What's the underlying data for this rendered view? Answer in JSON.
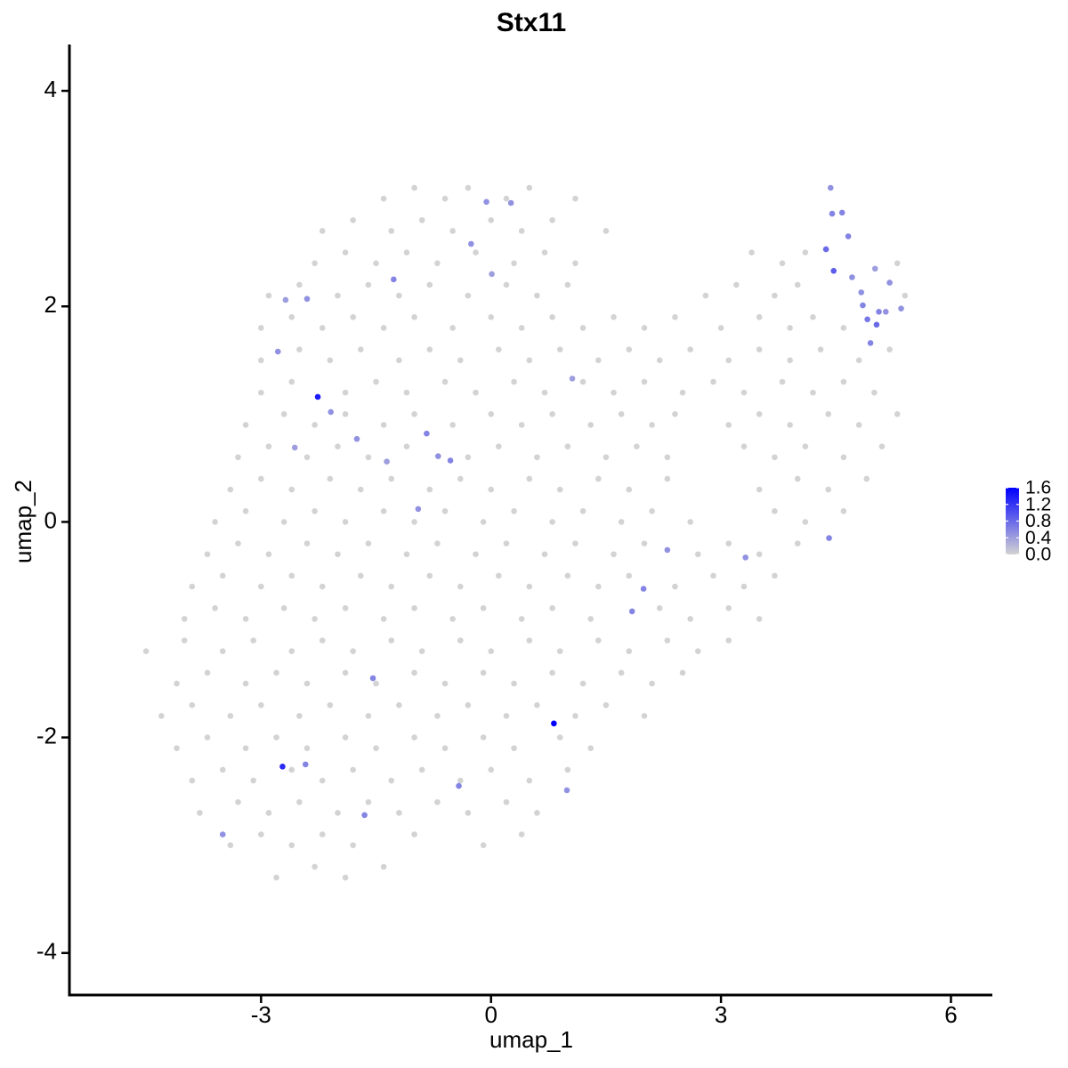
{
  "chart_data": {
    "type": "scatter",
    "title": "Stx11",
    "x_label": "umap_1",
    "y_label": "umap_2",
    "xlim": [
      -5.5,
      6.54
    ],
    "ylim": [
      -4.39,
      4.43
    ],
    "xticks": [
      -3,
      0,
      3,
      6
    ],
    "yticks": [
      -4,
      -2,
      0,
      2,
      4
    ],
    "color_low": "#d3d3d3",
    "color_high": "#0000ff",
    "clim": [
      0,
      1.6
    ],
    "colorbar_ticks": [
      {
        "value": 0,
        "label": "0.0"
      },
      0.4,
      0.8,
      1.2,
      1.6
    ],
    "x": [
      -1.4,
      -1.0,
      -0.6,
      -0.3,
      0.2,
      0.5,
      1.1,
      -2.2,
      -1.8,
      -1.3,
      -0.9,
      -0.5,
      0.0,
      0.4,
      0.8,
      1.5,
      -2.3,
      -1.9,
      -1.5,
      -1.1,
      -0.7,
      -0.2,
      0.3,
      0.7,
      1.1,
      3.4,
      3.8,
      4.1,
      5.3,
      -2.9,
      -2.5,
      -2.0,
      -1.6,
      -1.2,
      -0.8,
      -0.3,
      0.2,
      0.6,
      1.0,
      2.8,
      3.2,
      3.7,
      4.0,
      5.4,
      -3.0,
      -2.6,
      -2.2,
      -1.8,
      -1.4,
      -1.0,
      -0.5,
      0.0,
      0.4,
      0.8,
      1.2,
      1.6,
      2.0,
      2.4,
      3.0,
      3.5,
      3.9,
      4.2,
      4.6,
      -3.0,
      -2.5,
      -2.1,
      -1.7,
      -1.2,
      -0.8,
      -0.4,
      0.1,
      0.5,
      0.9,
      1.4,
      1.8,
      2.2,
      2.6,
      3.1,
      3.5,
      3.9,
      4.3,
      4.8,
      5.2,
      -3.0,
      -2.6,
      -1.9,
      -1.5,
      -1.1,
      -0.6,
      -0.2,
      0.3,
      0.7,
      1.2,
      1.6,
      2.0,
      2.5,
      2.9,
      3.3,
      3.8,
      4.2,
      4.6,
      5.0,
      -3.2,
      -2.7,
      -2.3,
      -1.9,
      -1.4,
      -1.0,
      -0.5,
      0.0,
      0.4,
      0.8,
      1.3,
      1.7,
      2.1,
      2.4,
      3.1,
      3.5,
      3.9,
      4.4,
      4.8,
      5.3,
      -3.3,
      -2.9,
      -2.4,
      -2.0,
      -1.6,
      -1.1,
      -0.3,
      0.1,
      0.6,
      1.0,
      1.5,
      1.9,
      2.3,
      3.3,
      3.7,
      4.1,
      4.6,
      5.1,
      -3.4,
      -3.0,
      -2.6,
      -2.1,
      -1.7,
      -1.3,
      -0.8,
      -0.4,
      0.0,
      0.5,
      0.9,
      1.4,
      1.8,
      2.3,
      3.5,
      4.0,
      4.4,
      4.9,
      -3.6,
      -3.2,
      -2.7,
      -2.3,
      -1.9,
      -1.4,
      -1.0,
      -0.6,
      -0.1,
      0.3,
      0.8,
      1.2,
      1.7,
      2.1,
      2.6,
      3.7,
      4.1,
      4.6,
      -3.7,
      -3.3,
      -2.9,
      -2.4,
      -2.0,
      -1.6,
      -1.1,
      -0.7,
      -0.2,
      0.2,
      0.7,
      1.1,
      1.6,
      2.0,
      2.7,
      3.1,
      3.5,
      4.0,
      -3.9,
      -3.5,
      -3.0,
      -2.6,
      -2.2,
      -1.7,
      -1.3,
      -0.8,
      -0.4,
      0.1,
      0.5,
      1.0,
      1.4,
      1.8,
      2.4,
      2.9,
      3.3,
      3.7,
      -4.0,
      -3.6,
      -3.2,
      -2.7,
      -2.3,
      -1.9,
      -1.4,
      -1.0,
      -0.5,
      -0.1,
      0.4,
      0.8,
      1.3,
      2.2,
      2.6,
      3.1,
      3.5,
      -4.5,
      -4.0,
      -3.5,
      -3.1,
      -2.6,
      -2.2,
      -1.8,
      -1.3,
      -0.9,
      -0.4,
      0.0,
      0.5,
      0.9,
      1.4,
      1.8,
      2.3,
      2.7,
      3.1,
      -4.1,
      -3.7,
      -3.2,
      -2.8,
      -2.4,
      -1.9,
      -1.5,
      -1.0,
      -0.6,
      -0.1,
      0.3,
      0.8,
      1.2,
      1.7,
      2.1,
      2.5,
      -4.3,
      -3.9,
      -3.4,
      -3.0,
      -2.5,
      -2.1,
      -1.6,
      -1.2,
      -0.7,
      -0.3,
      0.2,
      0.6,
      1.1,
      1.5,
      2.0,
      -4.1,
      -3.7,
      -3.2,
      -2.8,
      -2.4,
      -1.9,
      -1.5,
      -1.0,
      -0.6,
      -0.1,
      0.3,
      0.9,
      1.3,
      -3.9,
      -3.5,
      -3.1,
      -2.6,
      -2.2,
      -1.8,
      -1.3,
      -0.9,
      -0.4,
      0.0,
      0.5,
      1.0,
      -3.8,
      -3.3,
      -2.9,
      -2.5,
      -2.0,
      -1.6,
      -1.2,
      -0.7,
      -0.3,
      0.2,
      0.6,
      -3.4,
      -3.0,
      -2.6,
      -2.2,
      -1.8,
      -1.0,
      -0.1,
      0.4,
      -2.8,
      -2.3,
      -1.9,
      -1.4,
      -2.26,
      0.82,
      -2.72,
      4.43,
      4.45,
      4.58,
      4.37,
      4.47,
      4.66,
      4.71,
      4.83,
      4.85,
      4.91,
      5.03,
      5.06,
      5.15,
      5.2,
      5.35,
      5.01,
      4.95,
      4.41,
      -0.06,
      0.26,
      -0.26,
      0.01,
      -1.27,
      -2.68,
      -2.4,
      -2.78,
      -2.09,
      -2.56,
      -1.75,
      -1.36,
      -0.84,
      -0.69,
      -0.53,
      -0.95,
      1.06,
      2.3,
      1.99,
      1.84,
      3.32,
      -1.54,
      -2.42,
      -1.65,
      -0.42,
      0.99,
      -3.5
    ],
    "y": [
      3.0,
      3.1,
      3.0,
      3.1,
      3.0,
      3.1,
      3.0,
      2.7,
      2.8,
      2.7,
      2.8,
      2.7,
      2.8,
      2.7,
      2.8,
      2.7,
      2.4,
      2.5,
      2.4,
      2.5,
      2.4,
      2.5,
      2.4,
      2.5,
      2.4,
      2.5,
      2.4,
      2.5,
      2.4,
      2.1,
      2.2,
      2.1,
      2.2,
      2.1,
      2.2,
      2.1,
      2.2,
      2.1,
      2.2,
      2.1,
      2.2,
      2.1,
      2.2,
      2.1,
      1.8,
      1.9,
      1.8,
      1.9,
      1.8,
      1.9,
      1.8,
      1.9,
      1.8,
      1.9,
      1.8,
      1.9,
      1.8,
      1.9,
      1.8,
      1.9,
      1.8,
      1.9,
      1.8,
      1.5,
      1.6,
      1.5,
      1.6,
      1.5,
      1.6,
      1.5,
      1.6,
      1.5,
      1.6,
      1.5,
      1.6,
      1.5,
      1.6,
      1.5,
      1.6,
      1.5,
      1.6,
      1.5,
      1.6,
      1.2,
      1.3,
      1.2,
      1.3,
      1.2,
      1.3,
      1.2,
      1.3,
      1.2,
      1.3,
      1.2,
      1.3,
      1.2,
      1.3,
      1.2,
      1.3,
      1.2,
      1.3,
      1.2,
      0.9,
      1.0,
      0.9,
      1.0,
      0.9,
      1.0,
      0.9,
      1.0,
      0.9,
      1.0,
      0.9,
      1.0,
      0.9,
      1.0,
      0.9,
      1.0,
      0.9,
      1.0,
      0.9,
      1.0,
      0.6,
      0.7,
      0.6,
      0.7,
      0.6,
      0.7,
      0.6,
      0.7,
      0.6,
      0.7,
      0.6,
      0.7,
      0.6,
      0.7,
      0.6,
      0.7,
      0.6,
      0.7,
      0.3,
      0.4,
      0.3,
      0.4,
      0.3,
      0.4,
      0.3,
      0.4,
      0.3,
      0.4,
      0.3,
      0.4,
      0.3,
      0.4,
      0.3,
      0.4,
      0.3,
      0.4,
      0.0,
      0.1,
      0.0,
      0.1,
      0.0,
      0.1,
      0.0,
      0.1,
      0.0,
      0.1,
      0.0,
      0.1,
      0.0,
      0.1,
      0.0,
      0.1,
      0.0,
      0.1,
      -0.3,
      -0.2,
      -0.3,
      -0.2,
      -0.3,
      -0.2,
      -0.3,
      -0.2,
      -0.3,
      -0.2,
      -0.3,
      -0.2,
      -0.3,
      -0.2,
      -0.3,
      -0.2,
      -0.3,
      -0.2,
      -0.6,
      -0.5,
      -0.6,
      -0.5,
      -0.6,
      -0.5,
      -0.6,
      -0.5,
      -0.6,
      -0.5,
      -0.6,
      -0.5,
      -0.6,
      -0.5,
      -0.6,
      -0.5,
      -0.6,
      -0.5,
      -0.9,
      -0.8,
      -0.9,
      -0.8,
      -0.9,
      -0.8,
      -0.9,
      -0.8,
      -0.9,
      -0.8,
      -0.9,
      -0.8,
      -0.9,
      -0.8,
      -0.9,
      -0.8,
      -0.9,
      -1.2,
      -1.1,
      -1.2,
      -1.1,
      -1.2,
      -1.1,
      -1.2,
      -1.1,
      -1.2,
      -1.1,
      -1.2,
      -1.1,
      -1.2,
      -1.1,
      -1.2,
      -1.1,
      -1.2,
      -1.1,
      -1.5,
      -1.4,
      -1.5,
      -1.4,
      -1.5,
      -1.4,
      -1.5,
      -1.4,
      -1.5,
      -1.4,
      -1.5,
      -1.4,
      -1.5,
      -1.4,
      -1.5,
      -1.4,
      -1.8,
      -1.7,
      -1.8,
      -1.7,
      -1.8,
      -1.7,
      -1.8,
      -1.7,
      -1.8,
      -1.7,
      -1.8,
      -1.7,
      -1.8,
      -1.7,
      -1.8,
      -2.1,
      -2.0,
      -2.1,
      -2.0,
      -2.1,
      -2.0,
      -2.1,
      -2.0,
      -2.1,
      -2.0,
      -2.1,
      -2.0,
      -2.1,
      -2.4,
      -2.3,
      -2.4,
      -2.3,
      -2.4,
      -2.3,
      -2.4,
      -2.3,
      -2.4,
      -2.3,
      -2.4,
      -2.3,
      -2.7,
      -2.6,
      -2.7,
      -2.6,
      -2.7,
      -2.6,
      -2.7,
      -2.6,
      -2.7,
      -2.6,
      -2.7,
      -3.0,
      -2.9,
      -3.0,
      -2.9,
      -3.0,
      -2.9,
      -3.0,
      -2.9,
      -3.3,
      -3.2,
      -3.3,
      -3.2,
      1.16,
      -1.87,
      -2.27,
      3.1,
      2.86,
      2.87,
      2.53,
      2.33,
      2.65,
      2.27,
      2.13,
      2.01,
      1.88,
      1.83,
      1.95,
      1.95,
      2.22,
      1.98,
      2.35,
      1.66,
      -0.15,
      2.97,
      2.96,
      2.58,
      2.3,
      2.25,
      2.06,
      2.07,
      1.58,
      1.02,
      0.69,
      0.77,
      0.56,
      0.82,
      0.61,
      0.57,
      0.12,
      1.33,
      -0.26,
      -0.62,
      -0.83,
      -0.33,
      -1.45,
      -2.25,
      -2.72,
      -2.45,
      -2.49,
      -2.9
    ],
    "values": [
      0,
      0,
      0,
      0,
      0,
      0,
      0,
      0,
      0,
      0,
      0,
      0,
      0,
      0,
      0,
      0,
      0,
      0,
      0,
      0,
      0,
      0,
      0,
      0,
      0,
      0,
      0,
      0,
      0,
      0,
      0,
      0,
      0,
      0,
      0,
      0,
      0,
      0,
      0,
      0,
      0,
      0,
      0,
      0,
      0,
      0,
      0,
      0,
      0,
      0,
      0,
      0,
      0,
      0,
      0,
      0,
      0,
      0,
      0,
      0,
      0,
      0,
      0,
      0,
      0,
      0,
      0,
      0,
      0,
      0,
      0,
      0,
      0,
      0,
      0,
      0,
      0,
      0,
      0,
      0,
      0,
      0,
      0,
      0,
      0,
      0,
      0,
      0,
      0,
      0,
      0,
      0,
      0,
      0,
      0,
      0,
      0,
      0,
      0,
      0,
      0,
      0,
      0,
      0,
      0,
      0,
      0,
      0,
      0,
      0,
      0,
      0,
      0,
      0,
      0,
      0,
      0,
      0,
      0,
      0,
      0,
      0,
      0,
      0,
      0,
      0,
      0,
      0,
      0,
      0,
      0,
      0,
      0,
      0,
      0,
      0,
      0,
      0,
      0,
      0,
      0,
      0,
      0,
      0,
      0,
      0,
      0,
      0,
      0,
      0,
      0,
      0,
      0,
      0,
      0,
      0,
      0,
      0,
      0,
      0,
      0,
      0,
      0,
      0,
      0,
      0,
      0,
      0,
      0,
      0,
      0,
      0,
      0,
      0,
      0,
      0,
      0,
      0,
      0,
      0,
      0,
      0,
      0,
      0,
      0,
      0,
      0,
      0,
      0,
      0,
      0,
      0,
      0,
      0,
      0,
      0,
      0,
      0,
      0,
      0,
      0,
      0,
      0,
      0,
      0,
      0,
      0,
      0,
      0,
      0,
      0,
      0,
      0,
      0,
      0,
      0,
      0,
      0,
      0,
      0,
      0,
      0,
      0,
      0,
      0,
      0,
      0,
      0,
      0,
      0,
      0,
      0,
      0,
      0,
      0,
      0,
      0,
      0,
      0,
      0,
      0,
      0,
      0,
      0,
      0,
      0,
      0,
      0,
      0,
      0,
      0,
      0,
      0,
      0,
      0,
      0,
      0,
      0,
      0,
      0,
      0,
      0,
      0,
      0,
      0,
      0,
      0,
      0,
      0,
      0,
      0,
      0,
      0,
      0,
      0,
      0,
      0,
      0,
      0,
      0,
      0,
      0,
      0,
      0,
      0,
      0,
      0,
      0,
      0,
      0,
      0,
      0,
      0,
      0,
      0,
      0,
      0,
      0,
      0,
      0,
      0,
      0,
      0,
      0,
      0,
      0,
      0,
      0,
      0,
      0,
      0,
      0,
      0,
      0,
      0,
      0,
      0,
      0,
      0,
      0,
      0,
      0,
      0,
      0,
      0,
      0,
      1.4,
      1.6,
      1.3,
      0.5,
      0.6,
      0.6,
      0.8,
      0.9,
      0.6,
      0.5,
      0.5,
      0.6,
      0.7,
      0.8,
      0.6,
      0.5,
      0.5,
      0.5,
      0.4,
      0.6,
      0.6,
      0.5,
      0.5,
      0.5,
      0.4,
      0.6,
      0.4,
      0.5,
      0.5,
      0.5,
      0.4,
      0.5,
      0.4,
      0.6,
      0.5,
      0.6,
      0.5,
      0.4,
      0.5,
      0.6,
      0.6,
      0.5,
      0.6,
      0.6,
      0.6,
      0.6,
      0.5,
      0.5
    ]
  }
}
